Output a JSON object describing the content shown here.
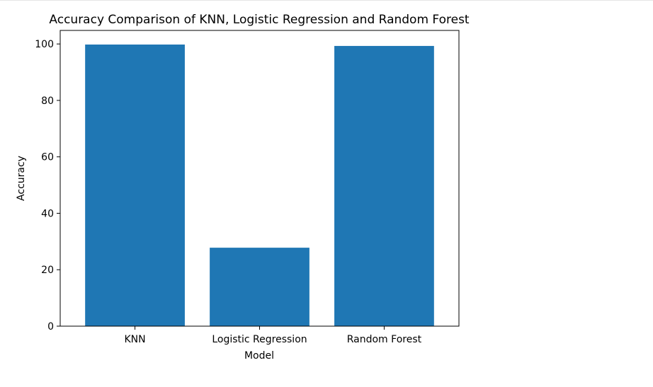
{
  "chart_data": {
    "type": "bar",
    "title": "Accuracy Comparison of KNN, Logistic Regression and Random Forest",
    "xlabel": "Model",
    "ylabel": "Accuracy",
    "categories": [
      "KNN",
      "Logistic Regression",
      "Random Forest"
    ],
    "values": [
      99.8,
      27.8,
      99.3
    ],
    "ylim": [
      0,
      104.8
    ],
    "yticks": [
      0,
      20,
      40,
      60,
      80,
      100
    ],
    "bar_color": "#1f77b4",
    "grid": false,
    "legend": "none"
  }
}
